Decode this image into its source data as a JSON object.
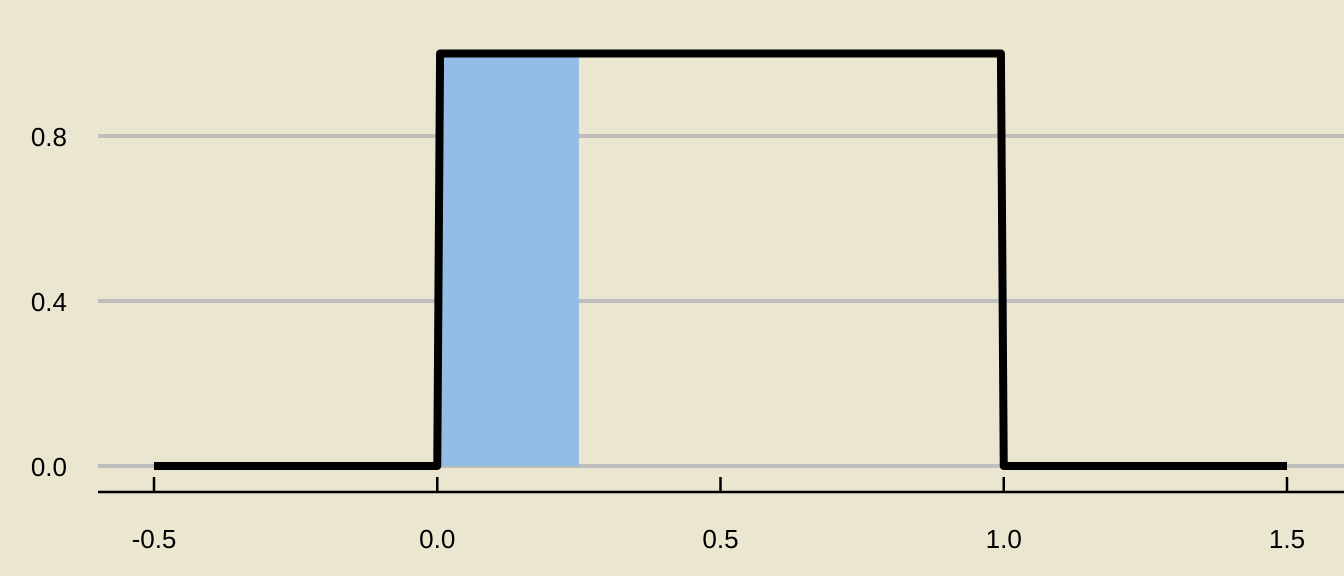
{
  "chart_data": {
    "type": "line",
    "title": "",
    "xlabel": "",
    "ylabel": "",
    "xlim": [
      -0.6,
      1.6
    ],
    "ylim": [
      -0.06,
      1.04
    ],
    "x_ticks": [
      "-0.5",
      "0.0",
      "0.5",
      "1.0",
      "1.5"
    ],
    "x_tick_values": [
      -0.5,
      0.0,
      0.5,
      1.0,
      1.5
    ],
    "y_ticks": [
      "0.0",
      "0.4",
      "0.8"
    ],
    "y_tick_values": [
      0.0,
      0.4,
      0.8
    ],
    "grid": "horizontal",
    "legend": "none",
    "series": [
      {
        "x": [
          -0.5,
          0.0,
          0.005,
          0.995,
          1.0,
          1.5
        ],
        "y": [
          0.0,
          0.0,
          1.0,
          1.0,
          0.0,
          0.0
        ]
      }
    ],
    "shaded_region": {
      "x_start": 0.0,
      "x_end": 0.25,
      "y_start": 0.0,
      "y_end": 1.0
    },
    "colors": {
      "background": "#ebe6d0",
      "grid": "#bebebe",
      "line": "#000000",
      "shade": "#94bde6",
      "axis": "#000000"
    }
  }
}
